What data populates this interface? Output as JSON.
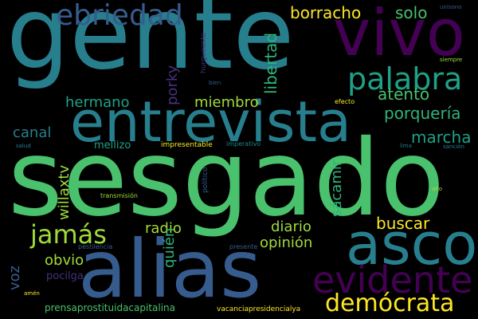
{
  "colors": {
    "background": "#000000",
    "c_yellow": "#fde725",
    "c_lightgreen": "#a0da39",
    "c_green": "#4ac16d",
    "c_seagreen": "#2fb47c",
    "c_teal": "#1fa187",
    "c_cyan": "#277f8e",
    "c_blue": "#365c8d",
    "c_indigo": "#46327e",
    "c_purple": "#440154"
  },
  "words": {
    "gente": "gente",
    "sesgado": "sesgado",
    "alias": "alias",
    "entrevista": "entrevista",
    "vivo": "vivo",
    "asco": "asco",
    "evidente": "evidente",
    "ebriedad": "ebriedad",
    "palabra": "palabra",
    "democrata": "demócrata",
    "jamas": "jamás",
    "borracho": "borracho",
    "solo": "solo",
    "libertad": "libertad",
    "atento": "atento",
    "porqueria": "porquería",
    "marcha": "marcha",
    "hermano": "hermano",
    "miembro": "miembro",
    "porky": "porky",
    "canal": "canal",
    "willaxtv": "willaxtv",
    "mellizo": "mellizo",
    "sacamir": "sácamir",
    "buscar": "buscar",
    "diario": "diario",
    "radio": "radio",
    "opinion": "opinión",
    "quien": "quién",
    "obvio": "obvio",
    "voz": "voz",
    "pocilga": "pocilga",
    "prensaprostituidacapitalina": "prensaprostituidacapitalina",
    "vacanciapresidencialya": "vacanciapresidencialya",
    "impresentable": "impresentable",
    "imperativo": "imperativo",
    "efecto": "efecto",
    "salud": "salud",
    "transmision": "transmisión",
    "politico": "político",
    "pestilencia": "pestilencia",
    "presente": "presente",
    "amen": "amén",
    "bien": "bien",
    "unisono": "unísono",
    "siempre": "siempre",
    "lima": "lima",
    "sancion": "sanción",
    "ano": "año",
    "hurgueaste": "hurgueaste"
  }
}
